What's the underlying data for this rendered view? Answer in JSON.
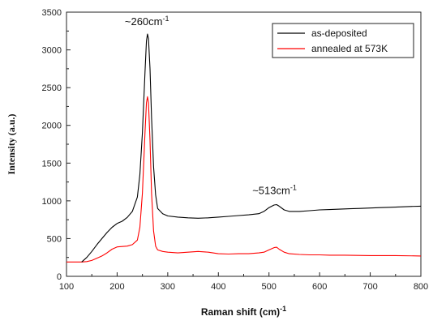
{
  "chart_data": {
    "type": "line",
    "xlabel": "Raman shift (cm)",
    "xlabel_sup": "-1",
    "ylabel": "Intensity (a.u.)",
    "xlim": [
      100,
      800
    ],
    "ylim": [
      0,
      3500
    ],
    "xticks": [
      "100",
      "200",
      "300",
      "400",
      "500",
      "600",
      "700",
      "800"
    ],
    "yticks": [
      "0",
      "500",
      "1000",
      "1500",
      "2000",
      "2500",
      "3000",
      "3500"
    ],
    "grid": false,
    "legend_position": "top-right",
    "annotations": [
      {
        "text": "~260cm",
        "sup": "-1",
        "x": 260,
        "y": 3330
      },
      {
        "text": "~513cm",
        "sup": "-1",
        "x": 512,
        "y": 1090
      }
    ],
    "series": [
      {
        "name": "as-deposited",
        "color": "#000000",
        "points": [
          [
            130,
            190
          ],
          [
            140,
            250
          ],
          [
            150,
            330
          ],
          [
            160,
            420
          ],
          [
            170,
            500
          ],
          [
            180,
            580
          ],
          [
            190,
            650
          ],
          [
            200,
            700
          ],
          [
            210,
            730
          ],
          [
            220,
            780
          ],
          [
            230,
            860
          ],
          [
            240,
            1050
          ],
          [
            245,
            1350
          ],
          [
            250,
            1900
          ],
          [
            255,
            2700
          ],
          [
            258,
            3120
          ],
          [
            260,
            3210
          ],
          [
            262,
            3150
          ],
          [
            265,
            2750
          ],
          [
            268,
            2100
          ],
          [
            272,
            1450
          ],
          [
            276,
            1080
          ],
          [
            280,
            900
          ],
          [
            290,
            830
          ],
          [
            300,
            800
          ],
          [
            320,
            785
          ],
          [
            340,
            775
          ],
          [
            360,
            770
          ],
          [
            380,
            775
          ],
          [
            400,
            785
          ],
          [
            420,
            795
          ],
          [
            440,
            805
          ],
          [
            460,
            815
          ],
          [
            480,
            830
          ],
          [
            490,
            860
          ],
          [
            500,
            910
          ],
          [
            510,
            945
          ],
          [
            515,
            950
          ],
          [
            520,
            930
          ],
          [
            530,
            880
          ],
          [
            540,
            860
          ],
          [
            560,
            860
          ],
          [
            580,
            870
          ],
          [
            600,
            880
          ],
          [
            620,
            885
          ],
          [
            640,
            890
          ],
          [
            660,
            895
          ],
          [
            680,
            900
          ],
          [
            700,
            905
          ],
          [
            720,
            910
          ],
          [
            740,
            915
          ],
          [
            760,
            920
          ],
          [
            780,
            925
          ],
          [
            800,
            930
          ]
        ]
      },
      {
        "name": "annealed at 573K",
        "color": "#ff0000",
        "points": [
          [
            100,
            190
          ],
          [
            110,
            190
          ],
          [
            120,
            190
          ],
          [
            130,
            190
          ],
          [
            140,
            195
          ],
          [
            150,
            210
          ],
          [
            160,
            240
          ],
          [
            170,
            270
          ],
          [
            180,
            310
          ],
          [
            190,
            360
          ],
          [
            200,
            390
          ],
          [
            210,
            395
          ],
          [
            220,
            400
          ],
          [
            230,
            420
          ],
          [
            240,
            480
          ],
          [
            245,
            650
          ],
          [
            250,
            1100
          ],
          [
            255,
            1900
          ],
          [
            258,
            2300
          ],
          [
            260,
            2380
          ],
          [
            262,
            2300
          ],
          [
            265,
            1800
          ],
          [
            268,
            1100
          ],
          [
            272,
            600
          ],
          [
            276,
            400
          ],
          [
            280,
            350
          ],
          [
            290,
            330
          ],
          [
            300,
            320
          ],
          [
            320,
            310
          ],
          [
            340,
            320
          ],
          [
            360,
            330
          ],
          [
            380,
            320
          ],
          [
            400,
            300
          ],
          [
            420,
            295
          ],
          [
            440,
            300
          ],
          [
            460,
            300
          ],
          [
            480,
            310
          ],
          [
            490,
            320
          ],
          [
            500,
            350
          ],
          [
            510,
            380
          ],
          [
            515,
            385
          ],
          [
            520,
            360
          ],
          [
            530,
            320
          ],
          [
            540,
            300
          ],
          [
            560,
            290
          ],
          [
            580,
            285
          ],
          [
            600,
            285
          ],
          [
            620,
            280
          ],
          [
            650,
            280
          ],
          [
            700,
            275
          ],
          [
            750,
            275
          ],
          [
            800,
            270
          ]
        ]
      }
    ]
  }
}
